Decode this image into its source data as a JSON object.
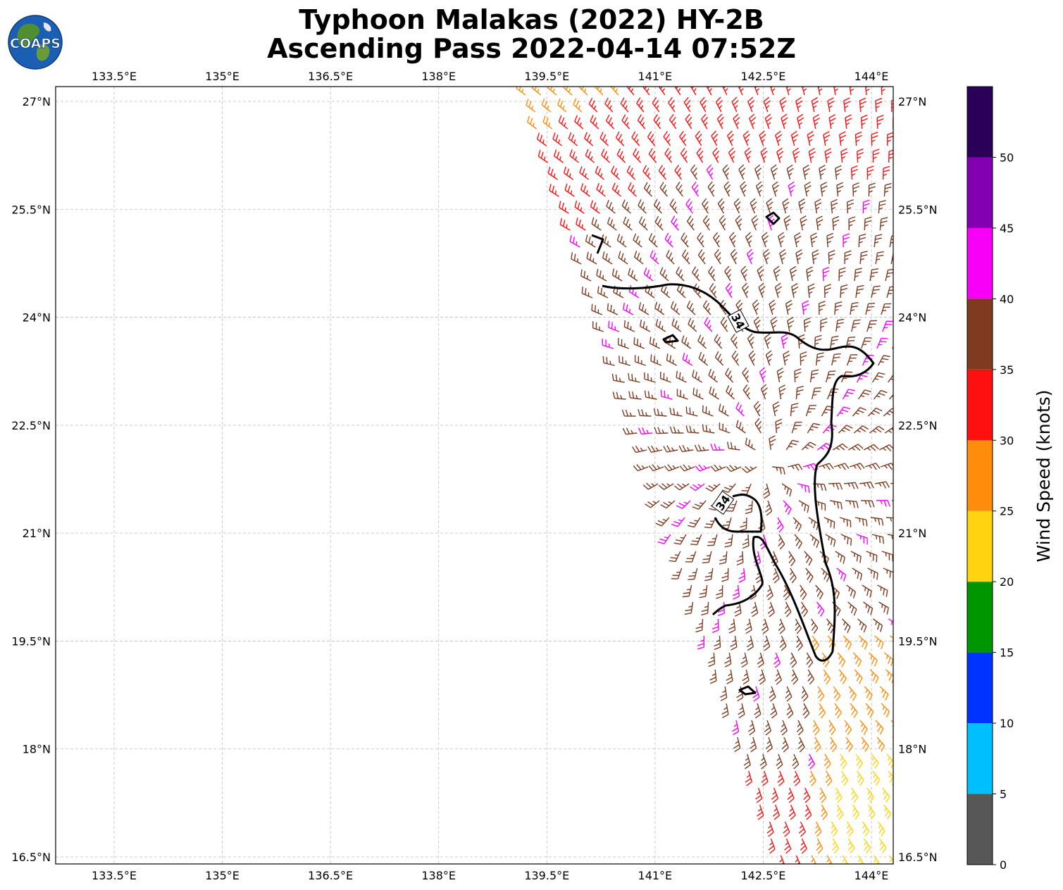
{
  "title": {
    "line1": "Typhoon Malakas (2022) HY-2B",
    "line2": "Ascending Pass 2022-04-14 07:52Z"
  },
  "logo": {
    "text": "COAPS",
    "icon": "globe-logo-icon"
  },
  "map": {
    "lon_ticks": [
      "133.5°E",
      "135°E",
      "136.5°E",
      "138°E",
      "139.5°E",
      "141°E",
      "142.5°E",
      "144°E"
    ],
    "lat_ticks": [
      "27°N",
      "25.5°N",
      "24°N",
      "22.5°N",
      "21°N",
      "19.5°N",
      "18°N",
      "16.5°N"
    ],
    "lon_values": [
      133.5,
      135,
      136.5,
      138,
      139.5,
      141,
      142.5,
      144
    ],
    "lat_values": [
      27,
      25.5,
      24,
      22.5,
      21,
      19.5,
      18,
      16.5
    ],
    "lon_range": [
      132.67,
      144.3
    ],
    "lat_range": [
      16.4,
      27.2
    ],
    "grid": true,
    "contour_label": "34"
  },
  "colorbar": {
    "label": "Wind Speed (knots)",
    "ticks": [
      "0",
      "5",
      "10",
      "15",
      "20",
      "25",
      "30",
      "35",
      "40",
      "45",
      "50"
    ],
    "bins": [
      {
        "from": 0,
        "to": 5,
        "color": "#575757"
      },
      {
        "from": 5,
        "to": 10,
        "color": "#00bfff"
      },
      {
        "from": 10,
        "to": 15,
        "color": "#0033ff"
      },
      {
        "from": 15,
        "to": 20,
        "color": "#009600"
      },
      {
        "from": 20,
        "to": 25,
        "color": "#ffd30f"
      },
      {
        "from": 25,
        "to": 30,
        "color": "#ff8c0a"
      },
      {
        "from": 30,
        "to": 35,
        "color": "#ff1010"
      },
      {
        "from": 35,
        "to": 40,
        "color": "#7f3a1f"
      },
      {
        "from": 40,
        "to": 45,
        "color": "#f800f8"
      },
      {
        "from": 45,
        "to": 50,
        "color": "#8200b2"
      },
      {
        "from": 50,
        "to": 55,
        "color": "#2a0059"
      }
    ]
  }
}
